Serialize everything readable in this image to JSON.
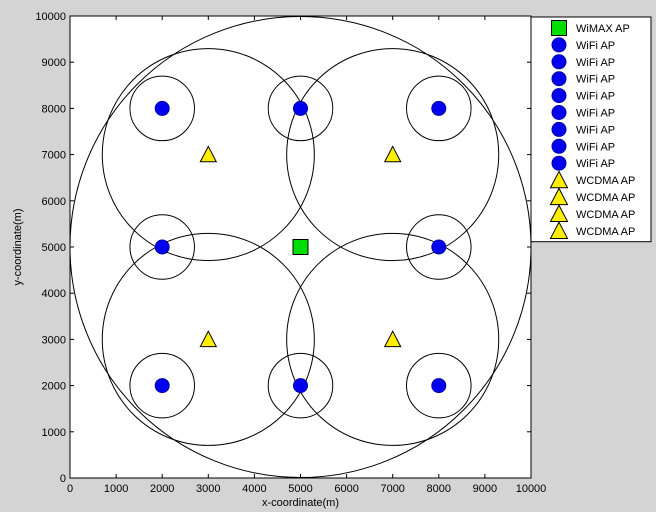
{
  "chart_data": {
    "type": "scatter",
    "title": "",
    "xlabel": "x-coordinate(m)",
    "ylabel": "y-coordinate(m)",
    "xlim": [
      0,
      10000
    ],
    "ylim": [
      0,
      10000
    ],
    "xticks": [
      0,
      1000,
      2000,
      3000,
      4000,
      5000,
      6000,
      7000,
      8000,
      9000,
      10000
    ],
    "yticks": [
      0,
      1000,
      2000,
      3000,
      4000,
      5000,
      6000,
      7000,
      8000,
      9000,
      10000
    ],
    "grid": false,
    "legend_placement": "top-right",
    "series": [
      {
        "name": "WiMAX AP",
        "marker": "square",
        "color": "#00dd00",
        "x": [
          5000
        ],
        "y": [
          5000
        ]
      },
      {
        "name": "WiFi AP",
        "marker": "circle",
        "color": "#0000ee",
        "x": [
          2000,
          5000,
          8000,
          2000,
          8000,
          2000,
          5000,
          8000
        ],
        "y": [
          8000,
          8000,
          8000,
          5000,
          5000,
          2000,
          2000,
          2000
        ]
      },
      {
        "name": "WCDMA AP",
        "marker": "triangle",
        "color": "#ffee00",
        "x": [
          3000,
          7000,
          3000,
          7000
        ],
        "y": [
          7000,
          7000,
          3000,
          3000
        ]
      }
    ],
    "coverage_circles": [
      {
        "cx": 5000,
        "cy": 5000,
        "r": 5000
      },
      {
        "cx": 3000,
        "cy": 7000,
        "r": 2300
      },
      {
        "cx": 7000,
        "cy": 7000,
        "r": 2300
      },
      {
        "cx": 3000,
        "cy": 3000,
        "r": 2300
      },
      {
        "cx": 7000,
        "cy": 3000,
        "r": 2300
      },
      {
        "cx": 2000,
        "cy": 8000,
        "r": 700
      },
      {
        "cx": 5000,
        "cy": 8000,
        "r": 700
      },
      {
        "cx": 8000,
        "cy": 8000,
        "r": 700
      },
      {
        "cx": 2000,
        "cy": 5000,
        "r": 700
      },
      {
        "cx": 8000,
        "cy": 5000,
        "r": 700
      },
      {
        "cx": 2000,
        "cy": 2000,
        "r": 700
      },
      {
        "cx": 5000,
        "cy": 2000,
        "r": 700
      },
      {
        "cx": 8000,
        "cy": 2000,
        "r": 700
      }
    ],
    "legend": [
      {
        "label": "WiMAX AP",
        "marker": "square"
      },
      {
        "label": "WiFi AP",
        "marker": "circle"
      },
      {
        "label": "WiFi AP",
        "marker": "circle"
      },
      {
        "label": "WiFi AP",
        "marker": "circle"
      },
      {
        "label": "WiFi AP",
        "marker": "circle"
      },
      {
        "label": "WiFi AP",
        "marker": "circle"
      },
      {
        "label": "WiFi AP",
        "marker": "circle"
      },
      {
        "label": "WiFi AP",
        "marker": "circle"
      },
      {
        "label": "WiFi AP",
        "marker": "circle"
      },
      {
        "label": "WCDMA AP",
        "marker": "triangle"
      },
      {
        "label": "WCDMA AP",
        "marker": "triangle"
      },
      {
        "label": "WCDMA AP",
        "marker": "triangle"
      },
      {
        "label": "WCDMA AP",
        "marker": "triangle"
      }
    ],
    "colors": {
      "square": "#00dd00",
      "circle": "#0000ee",
      "triangle": "#ffee00",
      "axes_bg": "#ffffff",
      "figure_bg": "#d4d4d4"
    }
  }
}
